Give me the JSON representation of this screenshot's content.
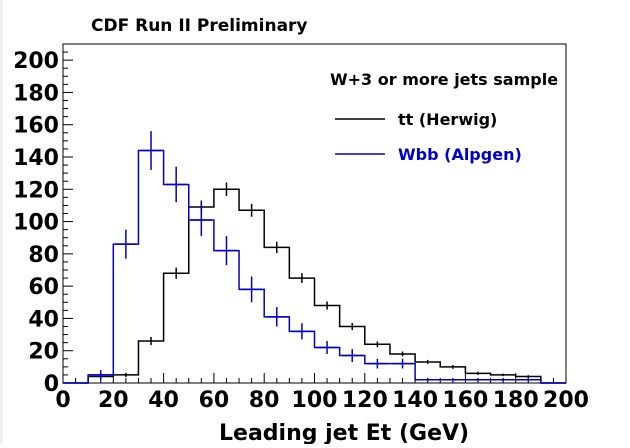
{
  "chart_data": {
    "type": "histogram",
    "title": "CDF Run II Preliminary",
    "annotation": "W+3 or more jets sample",
    "xlabel": "Leading jet Et (GeV)",
    "ylabel": "",
    "xlim": [
      0,
      200
    ],
    "ylim": [
      0,
      210
    ],
    "xticks": [
      0,
      20,
      40,
      60,
      80,
      100,
      120,
      140,
      160,
      180,
      200
    ],
    "yticks": [
      0,
      20,
      40,
      60,
      80,
      100,
      120,
      140,
      160,
      180,
      200
    ],
    "bin_edges": [
      0,
      10,
      20,
      30,
      40,
      50,
      60,
      70,
      80,
      90,
      100,
      110,
      120,
      130,
      140,
      150,
      160,
      170,
      180,
      190,
      200
    ],
    "grid": false,
    "legend_position": "top-right",
    "series": [
      {
        "name": "tt (Herwig)",
        "color": "#000000",
        "values": [
          0,
          4,
          5,
          26,
          68,
          109,
          120,
          107,
          84,
          65,
          48,
          35,
          24,
          18,
          13,
          10,
          6,
          5,
          4,
          0
        ],
        "errors": [
          0,
          1.2,
          1.3,
          2.5,
          3.5,
          4,
          4.2,
          4,
          3.5,
          3,
          2.5,
          2.2,
          1.8,
          1.5,
          1.3,
          1.2,
          1,
          0.8,
          0.8,
          0
        ]
      },
      {
        "name": "Wbb (Alpgen)",
        "color": "#0000cc",
        "values": [
          0,
          5,
          86,
          144,
          123,
          101,
          82,
          58,
          41,
          32,
          22,
          17,
          12,
          12,
          2,
          2,
          2,
          2,
          2,
          0
        ],
        "errors": [
          0,
          3,
          9,
          12,
          11,
          10,
          9,
          8,
          6,
          5,
          4,
          4,
          3,
          3,
          1,
          1,
          1,
          1,
          1,
          0
        ]
      }
    ]
  }
}
